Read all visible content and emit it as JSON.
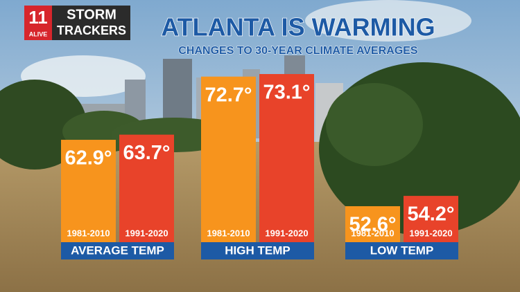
{
  "chart_data": {
    "type": "bar",
    "title": "ATLANTA IS WARMING",
    "subtitle": "CHANGES TO 30-YEAR CLIMATE AVERAGES",
    "logo": {
      "number": "11",
      "brand": "ALIVE",
      "line1": "STORM",
      "line2": "TRACKERS"
    },
    "categories": [
      "AVERAGE TEMP",
      "HIGH TEMP",
      "LOW TEMP"
    ],
    "series": [
      {
        "name": "1981-2010",
        "color": "#f7941d",
        "values": [
          62.9,
          72.7,
          52.6
        ],
        "value_labels": [
          "62.9°",
          "72.7°",
          "52.6°"
        ]
      },
      {
        "name": "1991-2020",
        "color": "#e8432a",
        "values": [
          63.7,
          73.1,
          54.2
        ],
        "value_labels": [
          "63.7°",
          "73.1°",
          "54.2°"
        ]
      }
    ]
  }
}
